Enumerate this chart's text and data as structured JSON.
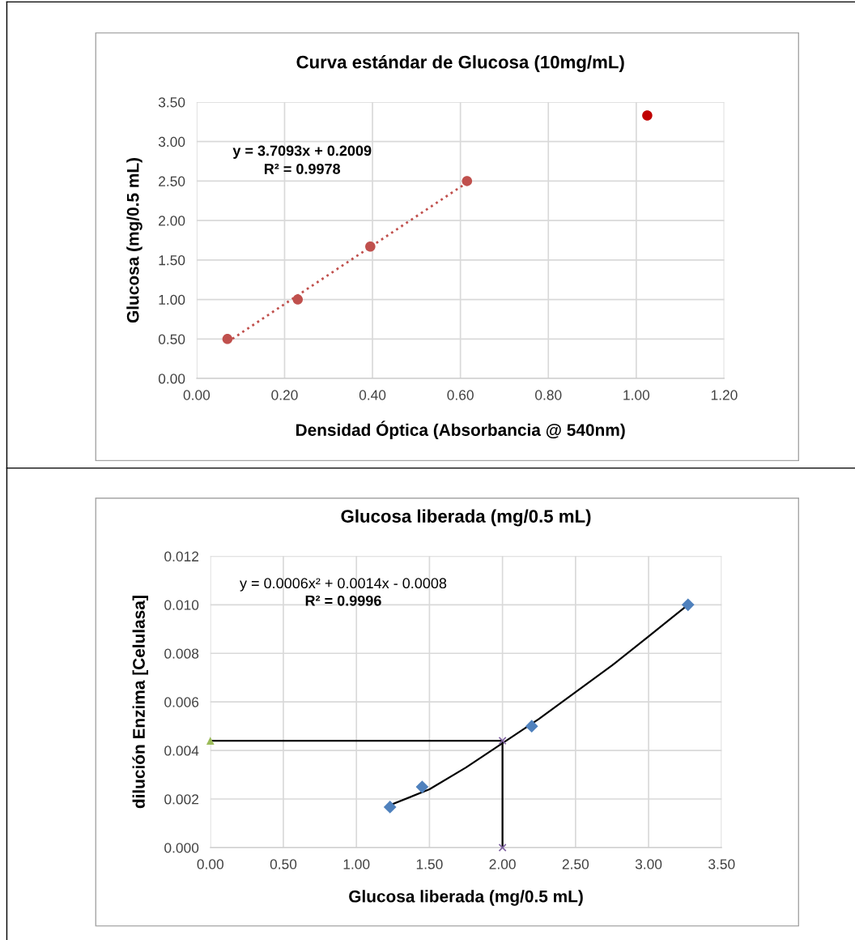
{
  "chart_data": [
    {
      "type": "scatter",
      "title": "Curva estándar de Glucosa (10mg/mL)",
      "xlabel": "Densidad Óptica (Absorbancia @ 540nm)",
      "ylabel": "Glucosa (mg/0.5 mL)",
      "xlim": [
        0,
        1.2
      ],
      "xticks": [
        {
          "value": 0,
          "label": "0.00"
        },
        {
          "value": 0.2,
          "label": "0.20"
        },
        {
          "value": 0.4,
          "label": "0.40"
        },
        {
          "value": 0.6,
          "label": "0.60"
        },
        {
          "value": 0.8,
          "label": "0.80"
        },
        {
          "value": 1.0,
          "label": "1.00"
        },
        {
          "value": 1.2,
          "label": "1.20"
        }
      ],
      "ylim": [
        0,
        3.5
      ],
      "yticks": [
        {
          "value": 0,
          "label": "0.00"
        },
        {
          "value": 0.5,
          "label": "0.50"
        },
        {
          "value": 1.0,
          "label": "1.00"
        },
        {
          "value": 1.5,
          "label": "1.50"
        },
        {
          "value": 2.0,
          "label": "2.00"
        },
        {
          "value": 2.5,
          "label": "2.50"
        },
        {
          "value": 3.0,
          "label": "3.00"
        },
        {
          "value": 3.5,
          "label": "3.50"
        }
      ],
      "grid": true,
      "annotations": [
        "y = 3.7093x + 0.2009",
        "R² = 0.9978"
      ],
      "series": [
        {
          "type": "line",
          "color": "#c0504d",
          "line_style": "dotted",
          "marker": "none",
          "x": [
            0.07,
            0.615
          ],
          "values": [
            0.46,
            2.48
          ]
        },
        {
          "color": "#c0504d",
          "marker": "circle",
          "x": [
            0.07,
            0.23,
            0.395,
            0.615
          ],
          "values": [
            0.5,
            1.0,
            1.67,
            2.5
          ]
        },
        {
          "color": "#c00000",
          "marker": "circle",
          "x": [
            1.025
          ],
          "values": [
            3.33
          ]
        }
      ]
    },
    {
      "type": "scatter",
      "title": "Glucosa liberada (mg/0.5 mL)",
      "xlabel": "Glucosa liberada (mg/0.5 mL)",
      "ylabel": "dilución Enzima [Celulasa]",
      "xlim": [
        0,
        3.5
      ],
      "xticks": [
        {
          "value": 0,
          "label": "0.00"
        },
        {
          "value": 0.5,
          "label": "0.50"
        },
        {
          "value": 1.0,
          "label": "1.00"
        },
        {
          "value": 1.5,
          "label": "1.50"
        },
        {
          "value": 2.0,
          "label": "2.00"
        },
        {
          "value": 2.5,
          "label": "2.50"
        },
        {
          "value": 3.0,
          "label": "3.00"
        },
        {
          "value": 3.5,
          "label": "3.50"
        }
      ],
      "ylim": [
        0,
        0.012
      ],
      "yticks": [
        {
          "value": 0,
          "label": "0.000"
        },
        {
          "value": 0.002,
          "label": "0.002"
        },
        {
          "value": 0.004,
          "label": "0.004"
        },
        {
          "value": 0.006,
          "label": "0.006"
        },
        {
          "value": 0.008,
          "label": "0.008"
        },
        {
          "value": 0.01,
          "label": "0.010"
        },
        {
          "value": 0.012,
          "label": "0.012"
        }
      ],
      "grid": true,
      "annotations": [
        "y = 0.0006x² + 0.0014x - 0.0008",
        "R² = 0.9996"
      ],
      "series": [
        {
          "type": "line",
          "color": "#000000",
          "line_style": "solid",
          "marker": "none",
          "x": [
            1.23,
            1.5,
            1.75,
            2.0,
            2.25,
            2.5,
            2.75,
            3.0,
            3.27
          ],
          "values": [
            0.00175,
            0.0024,
            0.0033,
            0.0043,
            0.0053,
            0.0064,
            0.0075,
            0.0087,
            0.01
          ]
        },
        {
          "type": "line",
          "color": "#000000",
          "line_style": "solid",
          "marker": "none",
          "x": [
            0,
            2.0,
            2.0
          ],
          "values": [
            0.0044,
            0.0044,
            0
          ]
        },
        {
          "color": "#4f81bd",
          "marker": "diamond",
          "x": [
            1.23,
            1.45,
            2.2,
            3.27
          ],
          "values": [
            0.00167,
            0.0025,
            0.005,
            0.01
          ]
        },
        {
          "color": "#9bbb59",
          "marker": "triangle",
          "x": [
            0
          ],
          "values": [
            0.0044
          ]
        },
        {
          "color": "#8064a2",
          "marker": "cross",
          "x": [
            2.0,
            2.0
          ],
          "values": [
            0.0044,
            0
          ]
        }
      ]
    }
  ]
}
